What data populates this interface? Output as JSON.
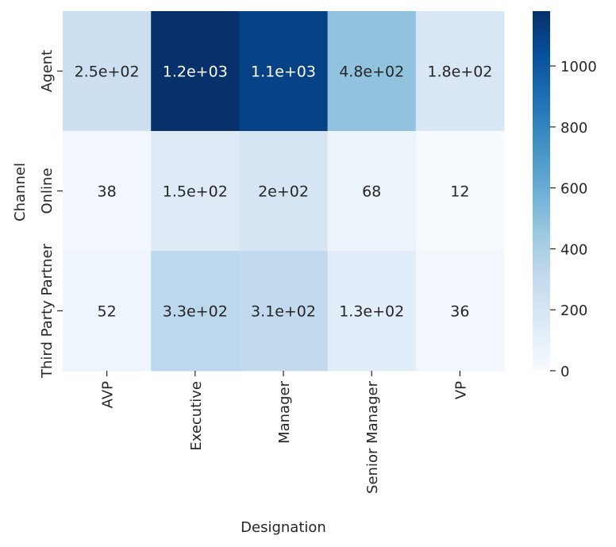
{
  "chart_data": {
    "type": "heatmap",
    "xlabel": "Designation",
    "ylabel": "Channel",
    "x_categories": [
      "AVP",
      "Executive",
      "Manager",
      "Senior Manager",
      "VP"
    ],
    "y_categories": [
      "Agent",
      "Online",
      "Third Party Partner"
    ],
    "values": [
      [
        250,
        1180,
        1100,
        480,
        180
      ],
      [
        38,
        150,
        200,
        68,
        12
      ],
      [
        52,
        330,
        310,
        130,
        36
      ]
    ],
    "cell_labels": [
      [
        "2.5e+02",
        "1.2e+03",
        "1.1e+03",
        "4.8e+02",
        "1.8e+02"
      ],
      [
        "38",
        "1.5e+02",
        "2e+02",
        "68",
        "12"
      ],
      [
        "52",
        "3.3e+02",
        "3.1e+02",
        "1.3e+02",
        "36"
      ]
    ],
    "colormap": "Blues",
    "colorbar": {
      "vmin": 0,
      "vmax": 1180,
      "ticks": [
        0,
        200,
        400,
        600,
        800,
        1000
      ],
      "tick_labels": [
        "0",
        "200",
        "400",
        "600",
        "800",
        "1000"
      ]
    },
    "grid": false
  }
}
